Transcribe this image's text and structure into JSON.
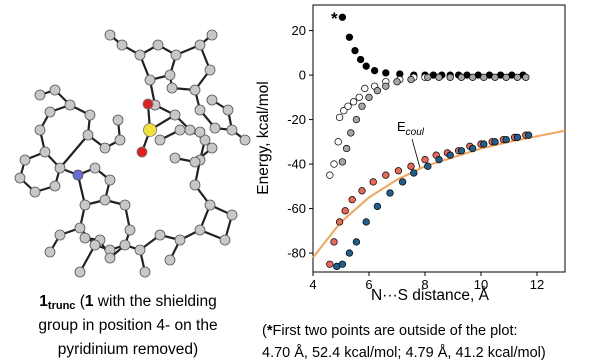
{
  "chart_data": {
    "type": "scatter",
    "x_label": "N···S distance, Å",
    "y_label": "Energy, kcal/mol",
    "xlim": [
      4,
      13
    ],
    "ylim": [
      -88.5,
      31.5
    ],
    "xticks": [
      4,
      6,
      8,
      10,
      12
    ],
    "yticks": [
      20,
      0,
      -20,
      -40,
      -60,
      -80
    ],
    "grid": false,
    "series": [
      {
        "color": "#000000",
        "x": [
          5.05,
          5.3,
          5.5,
          5.7,
          5.9,
          6.2,
          6.6,
          7.1,
          7.6,
          8.0,
          8.3,
          8.6,
          8.9,
          9.2,
          9.5,
          9.9,
          10.3,
          10.7,
          11.1,
          11.5
        ],
        "values": [
          26,
          17,
          11,
          7,
          4,
          2,
          1,
          0.5,
          0,
          0,
          0,
          0,
          0,
          0,
          0,
          0,
          0,
          0,
          0,
          0
        ]
      },
      {
        "color": "#ffffff",
        "x": [
          4.6,
          4.75,
          4.9,
          4.95,
          5.1,
          5.25,
          5.45,
          5.65,
          5.85,
          6.2,
          6.6,
          7.1,
          7.6,
          8.0
        ],
        "values": [
          -45,
          -40,
          -30,
          -19,
          -16,
          -14,
          -12,
          -10,
          -6,
          -5,
          -3,
          -2,
          -1,
          -1
        ]
      },
      {
        "color": "#a6a6a6",
        "x": [
          5.05,
          5.2,
          5.35,
          5.55,
          5.75,
          6.0,
          6.3,
          6.6,
          7.0,
          7.5,
          8.1,
          8.5,
          8.9,
          9.3,
          9.7,
          10.1,
          10.5,
          10.9,
          11.3,
          11.6
        ],
        "values": [
          -39,
          -33,
          -26,
          -20,
          -14,
          -10,
          -7,
          -5,
          -3,
          -2,
          -1,
          -1,
          -1,
          -1,
          -1,
          -1,
          -1,
          -1,
          -1,
          -1
        ]
      },
      {
        "color": "#e8685a",
        "x": [
          4.6,
          4.75,
          4.95,
          5.15,
          5.4,
          5.75,
          6.15,
          6.6,
          7.05,
          7.5,
          8.0,
          8.4,
          8.8,
          9.2,
          9.6,
          10.0,
          10.4,
          10.8,
          11.2,
          11.6
        ],
        "values": [
          -85,
          -75,
          -66,
          -61,
          -56,
          -52,
          -48,
          -45,
          -43,
          -41,
          -38,
          -36,
          -35,
          -34,
          -32,
          -31,
          -30,
          -29,
          -28,
          -27
        ]
      },
      {
        "color": "#1f5f8b",
        "x": [
          4.85,
          5.05,
          5.3,
          5.55,
          5.9,
          6.3,
          6.75,
          7.2,
          7.6,
          8.1,
          8.5,
          8.9,
          9.3,
          9.7,
          10.1,
          10.5,
          10.9,
          11.3,
          11.7
        ],
        "values": [
          -86,
          -85,
          -80,
          -75,
          -66,
          -59,
          -53,
          -48,
          -44,
          -41,
          -38,
          -36,
          -34,
          -33,
          -31,
          -30,
          -29,
          -28,
          -27
        ]
      },
      {
        "style": "line",
        "color": "#f5a55a",
        "x": [
          4,
          5,
          6,
          7,
          8,
          9,
          10,
          11,
          12,
          13
        ],
        "values": [
          -82,
          -66,
          -55,
          -47,
          -41,
          -37,
          -33,
          -30,
          -27.5,
          -25
        ]
      }
    ],
    "annotations": [
      {
        "text": "*"
      },
      {
        "text": "E",
        "sub": "coul"
      }
    ]
  },
  "caption": [
    "1",
    "trunc",
    " (",
    "1",
    " with the shielding",
    "group in position 4- on the",
    "pyridinium removed)"
  ],
  "footnote": [
    "(",
    "*",
    "First two points are outside of the plot:",
    "4.70 Å, 52.4 kcal/mol; 4.79 Å, 41.2 kcal/mol)"
  ]
}
